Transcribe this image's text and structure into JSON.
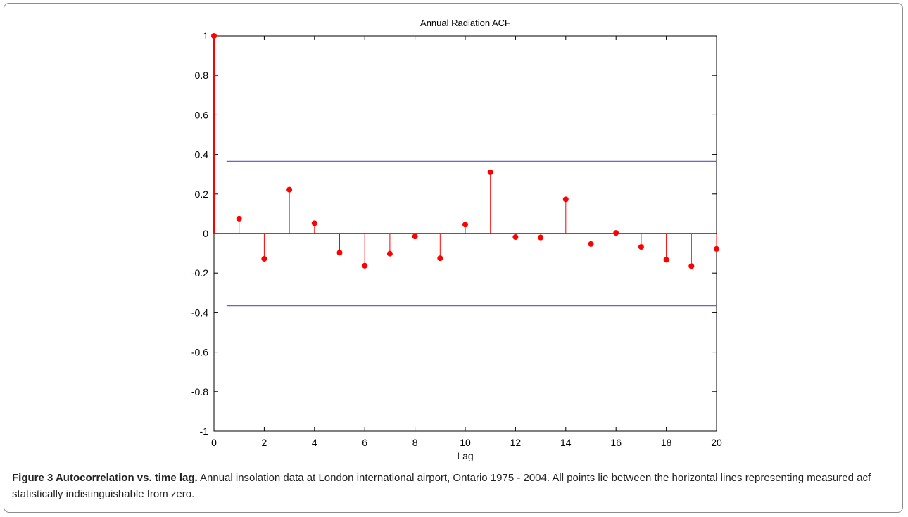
{
  "chart_data": {
    "type": "stem",
    "title": "Annual Radiation ACF",
    "xlabel": "Lag",
    "ylabel": "",
    "xlim": [
      0,
      20
    ],
    "ylim": [
      -1,
      1
    ],
    "xticks": [
      0,
      2,
      4,
      6,
      8,
      10,
      12,
      14,
      16,
      18,
      20
    ],
    "yticks": [
      -1,
      -0.8,
      -0.6,
      -0.4,
      -0.2,
      0,
      0.2,
      0.4,
      0.6,
      0.8,
      1
    ],
    "x": [
      0,
      1,
      2,
      3,
      4,
      5,
      6,
      7,
      8,
      9,
      10,
      11,
      12,
      13,
      14,
      15,
      16,
      17,
      18,
      19,
      20
    ],
    "series": [
      {
        "values": [
          1.0,
          0.075,
          -0.128,
          0.222,
          0.052,
          -0.097,
          -0.163,
          -0.102,
          -0.015,
          -0.125,
          0.045,
          0.31,
          -0.018,
          -0.02,
          0.173,
          -0.053,
          0.003,
          -0.068,
          -0.133,
          -0.165,
          -0.078
        ]
      }
    ],
    "confidence_bounds": {
      "upper": 0.365,
      "lower": -0.365,
      "x_range": [
        0.5,
        20
      ]
    },
    "colors": {
      "stem": "#ff0000",
      "bound": "#6666cc",
      "axis": "#000000"
    },
    "grid": false
  },
  "caption": {
    "title": "Figure 3 Autocorrelation vs. time lag.",
    "text": " Annual insolation data at London international airport, Ontario 1975 - 2004. All points lie between the horizontal lines representing measured acf statistically indistinguishable from zero."
  }
}
